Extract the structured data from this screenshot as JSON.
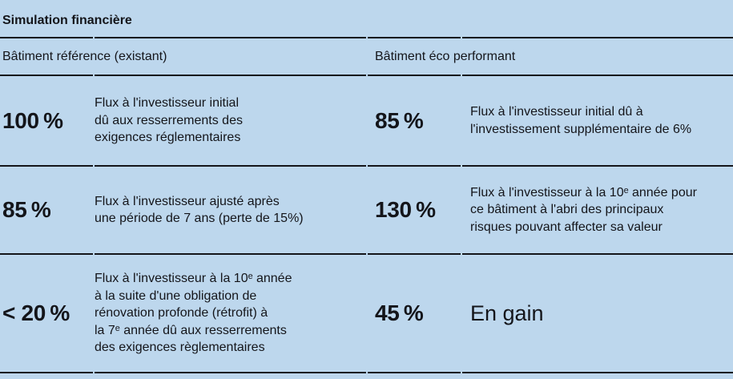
{
  "colors": {
    "background": "#bdd7ed",
    "text": "#14151a",
    "rule": "#14151a"
  },
  "table": {
    "title": "Simulation financière",
    "headers": {
      "reference": "Bâtiment référence (existant)",
      "eco": "Bâtiment éco performant"
    },
    "rows": [
      {
        "ref_value": "100 %",
        "ref_text": "Flux à l'investisseur initial\ndû aux resserrements des\nexigences réglementaires",
        "eco_value": "85 %",
        "eco_text": "Flux à l'investisseur initial dû à\nl'investissement supplémentaire de 6%"
      },
      {
        "ref_value": "85 %",
        "ref_text": "Flux à l'investisseur ajusté après\nune période de 7 ans (perte de 15%)",
        "eco_value": "130 %",
        "eco_text": "Flux à l'investisseur à la 10ᵉ année pour\nce bâtiment à l'abri des principaux\nrisques pouvant affecter sa valeur"
      },
      {
        "ref_value": "< 20 %",
        "ref_text": "Flux à l'investisseur à la 10ᵉ année\nà la suite d'une obligation de\nrénovation profonde (rétrofit) à\nla 7ᵉ année dû aux resserrements\ndes exigences règlementaires",
        "eco_value": "45 %",
        "eco_text": "En gain"
      }
    ]
  }
}
